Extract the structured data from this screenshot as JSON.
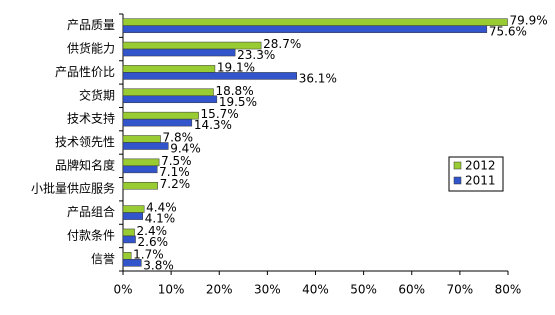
{
  "chart_data": {
    "type": "barh",
    "categories": [
      "产品质量",
      "供货能力",
      "产品性价比",
      "交货期",
      "技术支持",
      "技术领先性",
      "品牌知名度",
      "小批量供应服务",
      "产品组合",
      "付款条件",
      "信誉"
    ],
    "series": [
      {
        "name": "2012",
        "color": "#99cc33",
        "values": [
          79.9,
          28.7,
          19.1,
          18.8,
          15.7,
          7.8,
          7.5,
          7.2,
          4.4,
          2.4,
          1.7
        ],
        "value_labels": [
          "79.9%",
          "28.7%",
          "19.1%",
          "18.8%",
          "15.7%",
          "7.8%",
          "7.5%",
          "7.2%",
          "4.4%",
          "2.4%",
          "1.7%"
        ]
      },
      {
        "name": "2011",
        "color": "#3355cc",
        "values": [
          75.6,
          23.3,
          36.1,
          19.5,
          14.3,
          9.4,
          7.1,
          null,
          4.1,
          2.6,
          3.8
        ],
        "value_labels": [
          "75.6%",
          "23.3%",
          "36.1%",
          "19.5%",
          "14.3%",
          "9.4%",
          "7.1%",
          null,
          "4.1%",
          "2.6%",
          "3.8%"
        ]
      }
    ],
    "xlim": [
      0,
      80
    ],
    "xticks": [
      {
        "value": 0,
        "label": "0%"
      },
      {
        "value": 10,
        "label": "10%"
      },
      {
        "value": 20,
        "label": "20%"
      },
      {
        "value": 30,
        "label": "30%"
      },
      {
        "value": 40,
        "label": "40%"
      },
      {
        "value": 50,
        "label": "50%"
      },
      {
        "value": 60,
        "label": "60%"
      },
      {
        "value": 70,
        "label": "70%"
      },
      {
        "value": 80,
        "label": "80%"
      }
    ],
    "legend": "right"
  }
}
